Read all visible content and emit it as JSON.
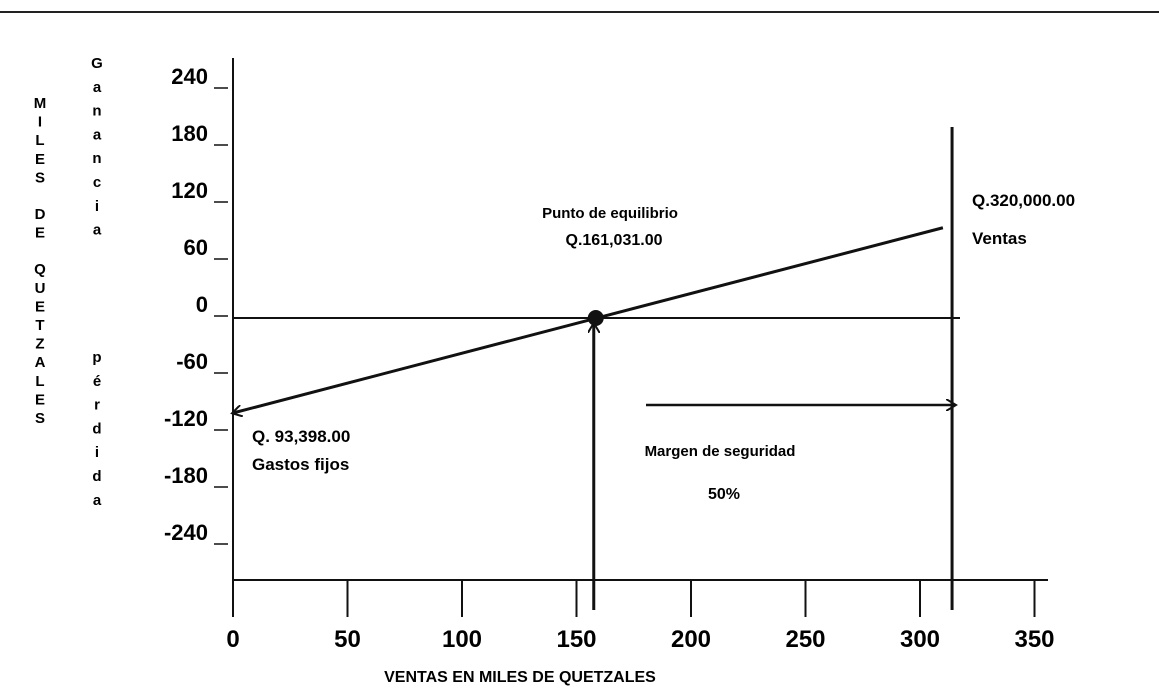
{
  "chart_data": {
    "type": "line",
    "title": "",
    "xlabel": "VENTAS EN MILES DE QUETZALES",
    "ylabel_outer": "MILES DE QUETZALES",
    "ylabel_inner_top": "Ganancia",
    "ylabel_inner_bottom": "pérdida",
    "x_ticks": [
      0,
      50,
      100,
      150,
      200,
      250,
      300,
      350
    ],
    "y_ticks": [
      240,
      180,
      120,
      60,
      0,
      -60,
      -120,
      -180,
      -240
    ],
    "xlim": [
      0,
      350
    ],
    "ylim": [
      -300,
      270
    ],
    "series": [
      {
        "name": "Ventas",
        "x": [
          0,
          310
        ],
        "y": [
          -100,
          95
        ]
      }
    ],
    "break_even": {
      "x": 161.031,
      "y": 0
    },
    "annotations": {
      "break_even_title": "Punto de equilibrio",
      "break_even_value": "Q.161,031.00",
      "sales_value": "Q.320,000.00",
      "sales_label": "Ventas",
      "fixed_costs_value": "Q. 93,398.00",
      "fixed_costs_label": "Gastos fijos",
      "margin_label": "Margen de seguridad",
      "margin_value": "50%"
    },
    "grid": false
  }
}
